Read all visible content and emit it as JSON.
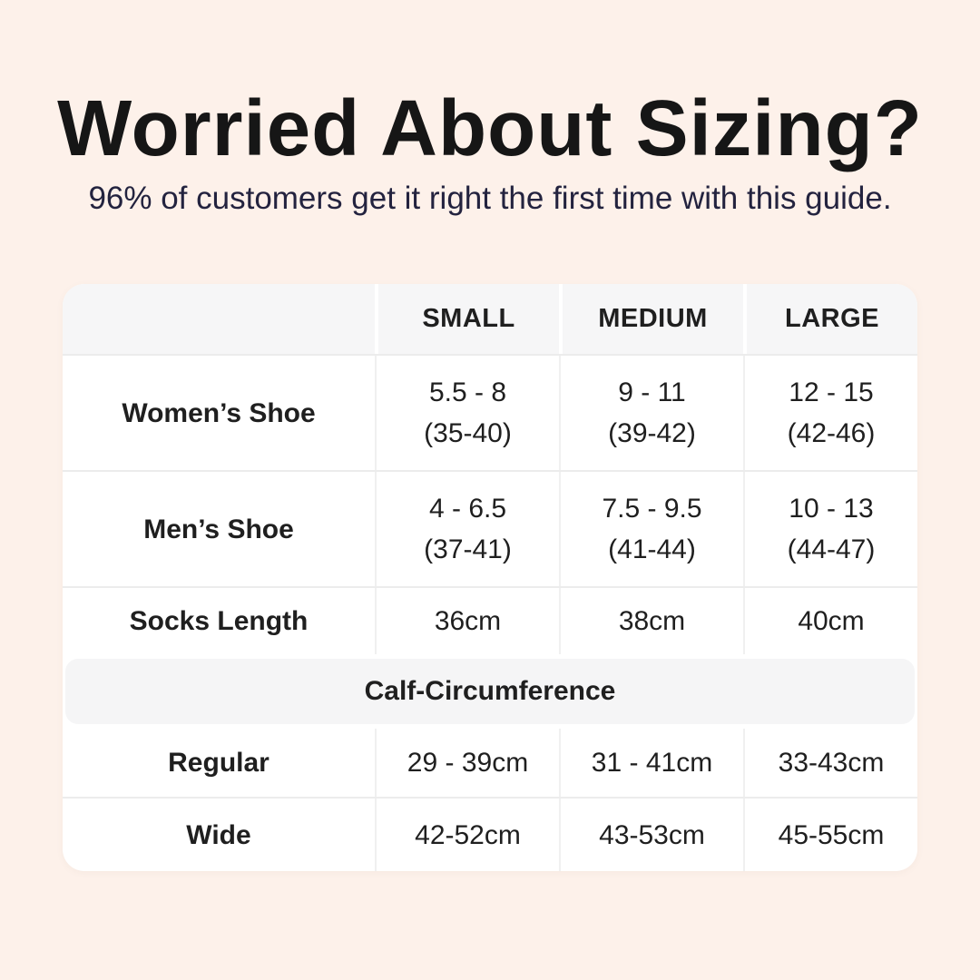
{
  "meta": {
    "background_color": "#fdf1ea",
    "title_color": "#161616",
    "subtitle_color": "#23233f",
    "table_background": "#ffffff",
    "band_background": "#f5f5f6"
  },
  "header": {
    "title": "Worried About Sizing?",
    "subtitle": "96% of customers get it right the first time with this guide."
  },
  "chart_data": {
    "type": "table",
    "title": "Worried About Sizing?",
    "subtitle": "96% of customers get it right the first time with this guide.",
    "columns": [
      "",
      "SMALL",
      "MEDIUM",
      "LARGE"
    ],
    "rows": [
      {
        "label": "Women’s Shoe",
        "small": [
          "5.5 - 8",
          "(35-40)"
        ],
        "medium": [
          "9 - 11",
          "(39-42)"
        ],
        "large": [
          "12 - 15",
          "(42-46)"
        ]
      },
      {
        "label": "Men’s Shoe",
        "small": [
          "4 - 6.5",
          "(37-41)"
        ],
        "medium": [
          "7.5 - 9.5",
          "(41-44)"
        ],
        "large": [
          "10 - 13",
          "(44-47)"
        ]
      },
      {
        "label": "Socks Length",
        "small": [
          "36cm"
        ],
        "medium": [
          "38cm"
        ],
        "large": [
          "40cm"
        ]
      }
    ],
    "section_header": "Calf-Circumference",
    "section_rows": [
      {
        "label": "Regular",
        "small": [
          "29 - 39cm"
        ],
        "medium": [
          "31 - 41cm"
        ],
        "large": [
          "33-43cm"
        ]
      },
      {
        "label": "Wide",
        "small": [
          "42-52cm"
        ],
        "medium": [
          "43-53cm"
        ],
        "large": [
          "45-55cm"
        ]
      }
    ]
  }
}
